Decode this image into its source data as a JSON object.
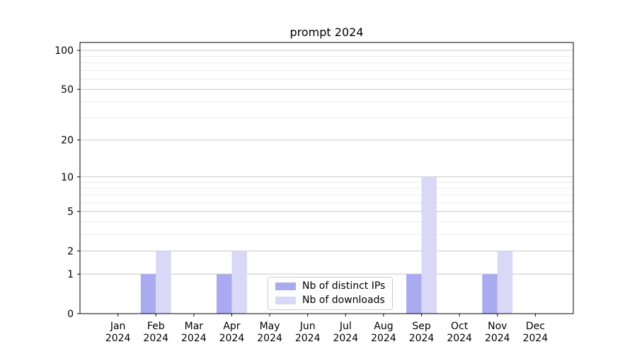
{
  "chart_data": {
    "type": "bar",
    "title": "prompt 2024",
    "categories": [
      "Jan 2024",
      "Feb 2024",
      "Mar 2024",
      "Apr 2024",
      "May 2024",
      "Jun 2024",
      "Jul 2024",
      "Aug 2024",
      "Sep 2024",
      "Oct 2024",
      "Nov 2024",
      "Dec 2024"
    ],
    "series": [
      {
        "name": "Nb of distinct IPs",
        "color": "#aaaaf0",
        "values": [
          0,
          1,
          0,
          1,
          0,
          0,
          0,
          0,
          1,
          0,
          1,
          0
        ]
      },
      {
        "name": "Nb of downloads",
        "color": "#d9d9f7",
        "values": [
          0,
          2,
          0,
          2,
          0,
          0,
          0,
          0,
          10,
          0,
          2,
          0
        ]
      }
    ],
    "xlabel": "",
    "ylabel": "",
    "y_axis": {
      "scale": "log1p",
      "ticks": [
        0,
        1,
        2,
        5,
        10,
        20,
        50,
        100
      ],
      "minor_ticks": [
        3,
        4,
        6,
        7,
        8,
        9,
        30,
        40,
        60,
        70,
        80,
        90
      ]
    },
    "ylim": [
      0,
      115
    ],
    "grid": "horizontal",
    "legend_position": "lower center",
    "grid_colors": {
      "major": "#c8c8c8",
      "minor": "#ebebeb"
    }
  }
}
